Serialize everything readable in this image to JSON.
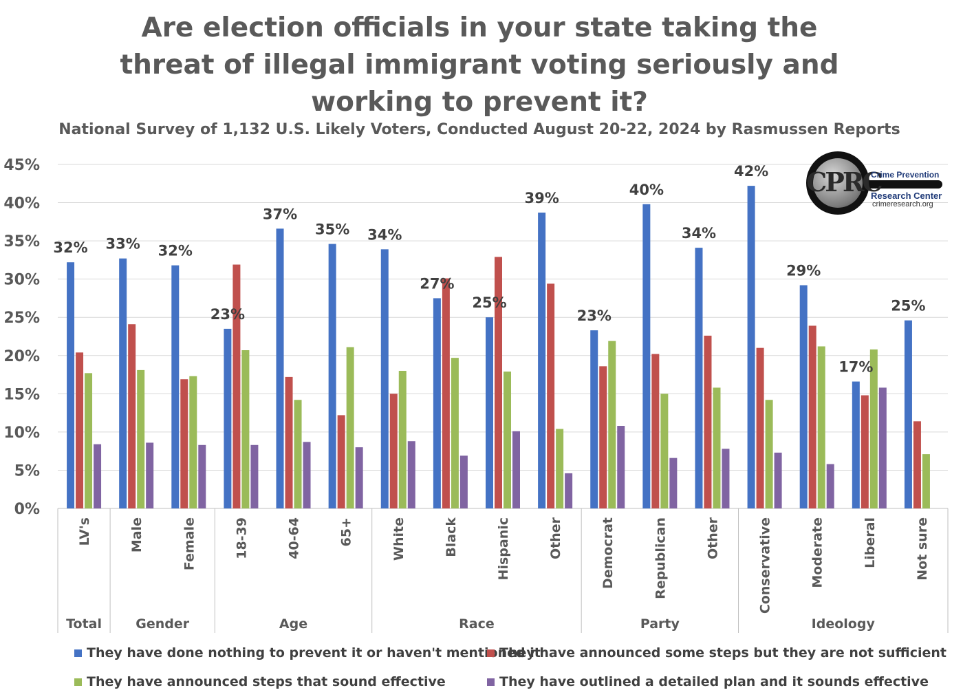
{
  "colors": {
    "nothing": "#4472C4",
    "insufficient": "#C0504D",
    "effective_steps": "#9BBB59",
    "detailed_plan": "#8064A2",
    "grid": "#d9d9d9",
    "axis_text": "#595959"
  },
  "chart_data": {
    "type": "bar",
    "title": "Are election officials in your state taking the threat of illegal immigrant voting seriously and working to prevent it?",
    "subtitle": "National Survey of 1,132 U.S. Likely Voters, Conducted August 20-22, 2024 by Rasmussen Reports",
    "ylim": [
      0,
      45
    ],
    "yticks": [
      0,
      5,
      10,
      15,
      20,
      25,
      30,
      35,
      40,
      45
    ],
    "ytick_labels": [
      "0%",
      "5%",
      "10%",
      "15%",
      "20%",
      "25%",
      "30%",
      "35%",
      "40%",
      "45%"
    ],
    "grid": true,
    "legend_position": "bottom",
    "categories": [
      "LV's",
      "Male",
      "Female",
      "18-39",
      "40-64",
      "65+",
      "White",
      "Black",
      "Hispanic",
      "Other",
      "Democrat",
      "Republican",
      "Other",
      "Conservative",
      "Moderate",
      "Liberal",
      "Not sure"
    ],
    "groups": [
      {
        "label": "Total",
        "count": 1
      },
      {
        "label": "Gender",
        "count": 2
      },
      {
        "label": "Age",
        "count": 3
      },
      {
        "label": "Race",
        "count": 4
      },
      {
        "label": "Party",
        "count": 3
      },
      {
        "label": "Ideology",
        "count": 4
      }
    ],
    "series": [
      {
        "name": "They have done nothing to prevent it or haven't mentioned it",
        "color_key": "nothing",
        "values": [
          32.2,
          32.7,
          31.8,
          23.5,
          36.6,
          34.6,
          33.9,
          27.5,
          25.0,
          38.7,
          23.3,
          39.8,
          34.1,
          42.2,
          29.2,
          16.6,
          24.6
        ]
      },
      {
        "name": "They have announced some steps but they are not sufficient",
        "color_key": "insufficient",
        "values": [
          20.4,
          24.1,
          16.9,
          31.9,
          17.2,
          12.2,
          15.0,
          30.1,
          32.9,
          29.4,
          18.6,
          20.2,
          22.6,
          21.0,
          23.9,
          14.8,
          11.4
        ]
      },
      {
        "name": "They have announced steps that sound effective",
        "color_key": "effective_steps",
        "values": [
          17.7,
          18.1,
          17.3,
          20.7,
          14.2,
          21.1,
          18.0,
          19.7,
          17.9,
          10.4,
          21.9,
          15.0,
          15.8,
          14.2,
          21.2,
          20.8,
          7.1
        ]
      },
      {
        "name": "They have outlined a detailed plan and it sounds effective",
        "color_key": "detailed_plan",
        "values": [
          8.4,
          8.6,
          8.3,
          8.3,
          8.7,
          8.0,
          8.8,
          6.9,
          10.1,
          4.6,
          10.8,
          6.6,
          7.8,
          7.3,
          5.8,
          15.8,
          null
        ]
      }
    ],
    "data_labels": [
      "32%",
      "33%",
      "32%",
      "23%",
      "37%",
      "35%",
      "34%",
      "27%",
      "25%",
      "39%",
      "23%",
      "40%",
      "34%",
      "42%",
      "29%",
      "17%",
      "25%"
    ]
  },
  "logo": {
    "letters": "CPRC",
    "line1": "Crime Prevention",
    "line2": "Research Center",
    "line3": "crimeresearch.org"
  }
}
